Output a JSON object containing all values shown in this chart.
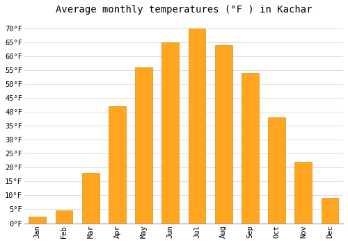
{
  "title": "Average monthly temperatures (°F ) in Kachar",
  "months": [
    "Jan",
    "Feb",
    "Mar",
    "Apr",
    "May",
    "Jun",
    "Jul",
    "Aug",
    "Sep",
    "Oct",
    "Nov",
    "Dec"
  ],
  "values": [
    2.5,
    4.5,
    18,
    42,
    56,
    65,
    70,
    64,
    54,
    38,
    22,
    9
  ],
  "bar_color": "#FFA520",
  "bar_edge_color": "#E09010",
  "background_color": "#FFFFFF",
  "grid_color": "#DDDDDD",
  "ylim": [
    0,
    73
  ],
  "yticks": [
    0,
    5,
    10,
    15,
    20,
    25,
    30,
    35,
    40,
    45,
    50,
    55,
    60,
    65,
    70
  ],
  "title_fontsize": 10,
  "tick_fontsize": 7.5,
  "tick_font": "monospace"
}
